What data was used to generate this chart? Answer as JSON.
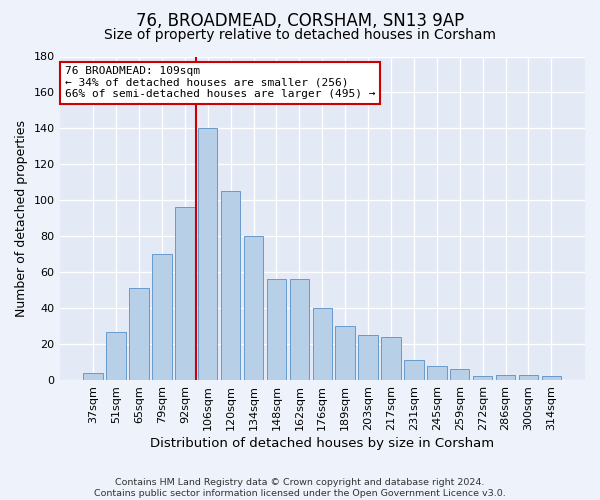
{
  "title_line1": "76, BROADMEAD, CORSHAM, SN13 9AP",
  "title_line2": "Size of property relative to detached houses in Corsham",
  "xlabel": "Distribution of detached houses by size in Corsham",
  "ylabel": "Number of detached properties",
  "footnote": "Contains HM Land Registry data © Crown copyright and database right 2024.\nContains public sector information licensed under the Open Government Licence v3.0.",
  "categories": [
    "37sqm",
    "51sqm",
    "65sqm",
    "79sqm",
    "92sqm",
    "106sqm",
    "120sqm",
    "134sqm",
    "148sqm",
    "162sqm",
    "176sqm",
    "189sqm",
    "203sqm",
    "217sqm",
    "231sqm",
    "245sqm",
    "259sqm",
    "272sqm",
    "286sqm",
    "300sqm",
    "314sqm"
  ],
  "values": [
    4,
    27,
    51,
    70,
    96,
    140,
    105,
    80,
    56,
    56,
    40,
    30,
    25,
    24,
    11,
    8,
    6,
    2,
    3,
    3,
    2
  ],
  "bar_color": "#b8cfe8",
  "bar_edge_color": "#6699cc",
  "vline_x_index": 5,
  "vline_color": "#cc0000",
  "annotation_text": "76 BROADMEAD: 109sqm\n← 34% of detached houses are smaller (256)\n66% of semi-detached houses are larger (495) →",
  "annotation_box_color": "#ffffff",
  "annotation_box_edge": "#cc0000",
  "ylim": [
    0,
    180
  ],
  "yticks": [
    0,
    20,
    40,
    60,
    80,
    100,
    120,
    140,
    160,
    180
  ],
  "background_color": "#eef2fa",
  "plot_bg_color": "#e4eaf5",
  "grid_color": "#ffffff",
  "title_fontsize": 12,
  "subtitle_fontsize": 10,
  "tick_fontsize": 8,
  "ylabel_fontsize": 9,
  "xlabel_fontsize": 9.5
}
